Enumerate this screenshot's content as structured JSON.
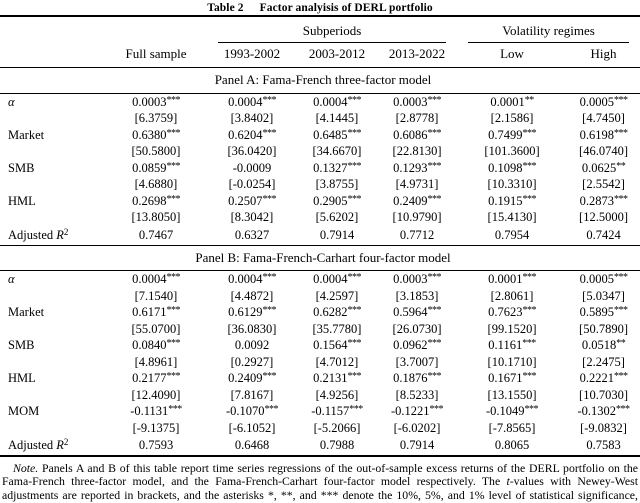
{
  "caption": {
    "label": "Table 2",
    "title": "Factor analyisis of DERL portfolio"
  },
  "header": {
    "spanners": {
      "subperiods": "Subperiods",
      "volatility": "Volatility regimes"
    },
    "columns": [
      "Full sample",
      "1993-2002",
      "2003-2012",
      "2013-2022",
      "Low",
      "High"
    ]
  },
  "panels": [
    {
      "label": "Panel A: Fama-French three-factor model",
      "rows": [
        {
          "factor": "α",
          "coefficients": [
            "0.0003***",
            "0.0004***",
            "0.0004***",
            "0.0003***",
            "0.0001**",
            "0.0005***"
          ],
          "t_values": [
            "[6.3759]",
            "[3.8402]",
            "[4.1445]",
            "[2.8778]",
            "[2.1586]",
            "[4.7450]"
          ]
        },
        {
          "factor": "Market",
          "coefficients": [
            "0.6380***",
            "0.6204***",
            "0.6485***",
            "0.6086***",
            "0.7499***",
            "0.6198***"
          ],
          "t_values": [
            "[50.5800]",
            "[36.0420]",
            "[34.6670]",
            "[22.8130]",
            "[101.3600]",
            "[46.0740]"
          ]
        },
        {
          "factor": "SMB",
          "coefficients": [
            "0.0859***",
            "-0.0009",
            "0.1327***",
            "0.1293***",
            "0.1098***",
            "0.0625**"
          ],
          "t_values": [
            "[4.6880]",
            "[-0.0254]",
            "[3.8755]",
            "[4.9731]",
            "[10.3310]",
            "[2.5542]"
          ]
        },
        {
          "factor": "HML",
          "coefficients": [
            "0.2698***",
            "0.2507***",
            "0.2905***",
            "0.2409***",
            "0.1915***",
            "0.2873***"
          ],
          "t_values": [
            "[13.8050]",
            "[8.3042]",
            "[5.6202]",
            "[10.9790]",
            "[15.4130]",
            "[12.5000]"
          ]
        }
      ],
      "adj_r2": {
        "prefix": "Adjusted ",
        "symbol": "R",
        "superscript": "2",
        "values": [
          "0.7467",
          "0.6327",
          "0.7914",
          "0.7712",
          "0.7954",
          "0.7424"
        ]
      }
    },
    {
      "label": "Panel B: Fama-French-Carhart four-factor model",
      "rows": [
        {
          "factor": "α",
          "coefficients": [
            "0.0004***",
            "0.0004***",
            "0.0004***",
            "0.0003***",
            "0.0001***",
            "0.0005***"
          ],
          "t_values": [
            "[7.1540]",
            "[4.4872]",
            "[4.2597]",
            "[3.1853]",
            "[2.8061]",
            "[5.0347]"
          ]
        },
        {
          "factor": "Market",
          "coefficients": [
            "0.6171***",
            "0.6129***",
            "0.6282***",
            "0.5964***",
            "0.7623***",
            "0.5895***"
          ],
          "t_values": [
            "[55.0700]",
            "[36.0830]",
            "[35.7780]",
            "[26.0730]",
            "[99.1520]",
            "[50.7890]"
          ]
        },
        {
          "factor": "SMB",
          "coefficients": [
            "0.0840***",
            "0.0092",
            "0.1564***",
            "0.0962***",
            "0.1161***",
            "0.0518**"
          ],
          "t_values": [
            "[4.8961]",
            "[0.2927]",
            "[4.7012]",
            "[3.7007]",
            "[10.1710]",
            "[2.2475]"
          ]
        },
        {
          "factor": "HML",
          "coefficients": [
            "0.2177***",
            "0.2409***",
            "0.2131***",
            "0.1876***",
            "0.1671***",
            "0.2221***"
          ],
          "t_values": [
            "[12.4090]",
            "[7.8167]",
            "[4.9256]",
            "[8.5233]",
            "[13.1550]",
            "[10.7030]"
          ]
        },
        {
          "factor": "MOM",
          "coefficients": [
            "-0.1131***",
            "-0.1070***",
            "-0.1157***",
            "-0.1221***",
            "-0.1049***",
            "-0.1302***"
          ],
          "t_values": [
            "[-9.1375]",
            "[-6.1052]",
            "[-5.2066]",
            "[-6.0202]",
            "[-7.8565]",
            "[-9.0832]"
          ]
        }
      ],
      "adj_r2": {
        "prefix": "Adjusted ",
        "symbol": "R",
        "superscript": "2",
        "values": [
          "0.7593",
          "0.6468",
          "0.7988",
          "0.7914",
          "0.8065",
          "0.7583"
        ]
      }
    }
  ],
  "note": {
    "prefix": "Note.",
    "body_1": " Panels A and B of this table report time series regressions of the out-of-sample excess returns of the DERL portfolio on the Fama-French three-factor model, and the Fama-French-Carhart four-factor model respectively. The ",
    "t_symbol": "t",
    "body_2": "-values with Newey-West adjustments are reported in brackets, and the asterisks *, **, and *** denote the 10%, 5%, and 1% level of statistical significance, respectively."
  }
}
